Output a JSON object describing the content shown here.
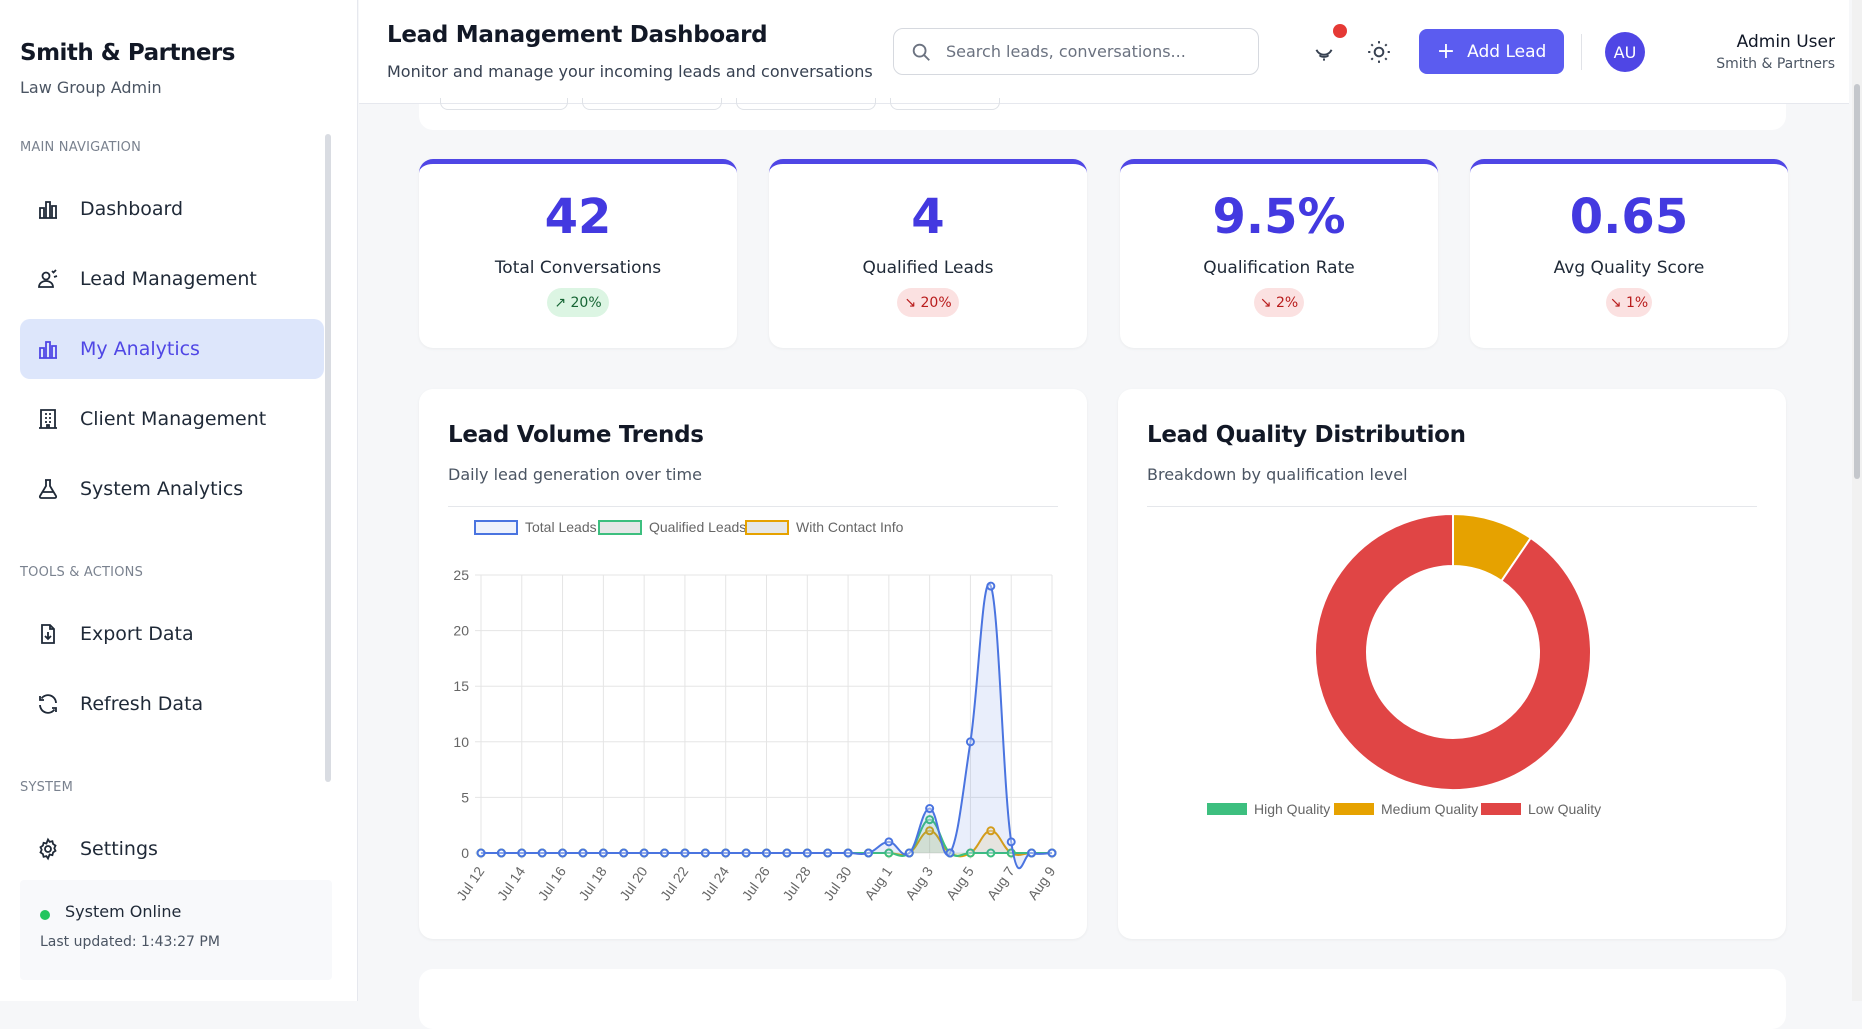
{
  "sidebar": {
    "brand": "Smith & Partners",
    "subtitle": "Law Group Admin",
    "sections": {
      "main": "MAIN NAVIGATION",
      "tools": "TOOLS & ACTIONS",
      "system": "SYSTEM"
    },
    "items": [
      {
        "label": "Dashboard",
        "icon": "bar-chart-icon",
        "active": false
      },
      {
        "label": "Lead Management",
        "icon": "users-icon",
        "active": false
      },
      {
        "label": "My Analytics",
        "icon": "bar-chart-icon",
        "active": true
      },
      {
        "label": "Client Management",
        "icon": "building-icon",
        "active": false
      },
      {
        "label": "System Analytics",
        "icon": "flask-icon",
        "active": false
      },
      {
        "label": "Export Data",
        "icon": "file-download-icon",
        "active": false
      },
      {
        "label": "Refresh Data",
        "icon": "refresh-icon",
        "active": false
      },
      {
        "label": "Settings",
        "icon": "gear-icon",
        "active": false
      }
    ],
    "status": {
      "label": "System Online",
      "updated": "Last updated: 1:43:27 PM",
      "color": "#22c55e"
    }
  },
  "header": {
    "title": "Lead Management Dashboard",
    "subtitle": "Monitor and manage your incoming leads and conversations",
    "search_placeholder": "Search leads, conversations...",
    "add_button": "Add Lead",
    "add_plus": "+",
    "user": {
      "initials": "AU",
      "name": "Admin User",
      "org": "Smith & Partners"
    },
    "accent": "#5b5cf0"
  },
  "stats": [
    {
      "value": "42",
      "label": "Total Conversations",
      "change": "↗ 20%",
      "trend": "up"
    },
    {
      "value": "4",
      "label": "Qualified Leads",
      "change": "↘ 20%",
      "trend": "down"
    },
    {
      "value": "9.5%",
      "label": "Qualification Rate",
      "change": "↘ 2%",
      "trend": "down"
    },
    {
      "value": "0.65",
      "label": "Avg Quality Score",
      "change": "↘ 1%",
      "trend": "down"
    }
  ],
  "volume_card": {
    "title": "Lead Volume Trends",
    "subtitle": "Daily lead generation over time"
  },
  "quality_card": {
    "title": "Lead Quality Distribution",
    "subtitle": "Breakdown by qualification level"
  },
  "chart_data": [
    {
      "type": "line",
      "title": "",
      "x": [
        "Jul 12",
        "Jul 13",
        "Jul 14",
        "Jul 15",
        "Jul 16",
        "Jul 17",
        "Jul 18",
        "Jul 19",
        "Jul 20",
        "Jul 21",
        "Jul 22",
        "Jul 23",
        "Jul 24",
        "Jul 25",
        "Jul 26",
        "Jul 27",
        "Jul 28",
        "Jul 29",
        "Jul 30",
        "Jul 31",
        "Aug 1",
        "Aug 2",
        "Aug 3",
        "Aug 4",
        "Aug 5",
        "Aug 6",
        "Aug 7",
        "Aug 8",
        "Aug 9"
      ],
      "x_tick_labels": [
        "Jul 12",
        "Jul 14",
        "Jul 16",
        "Jul 18",
        "Jul 20",
        "Jul 22",
        "Jul 24",
        "Jul 26",
        "Jul 28",
        "Jul 30",
        "Aug 1",
        "Aug 3",
        "Aug 5",
        "Aug 7",
        "Aug 9"
      ],
      "series": [
        {
          "name": "Total Leads",
          "color": "#4a74e0",
          "values": [
            0,
            0,
            0,
            0,
            0,
            0,
            0,
            0,
            0,
            0,
            0,
            0,
            0,
            0,
            0,
            0,
            0,
            0,
            0,
            0,
            1,
            0,
            4,
            0,
            10,
            24,
            1,
            0,
            0
          ]
        },
        {
          "name": "Qualified Leads",
          "color": "#3dbf7f",
          "values": [
            0,
            0,
            0,
            0,
            0,
            0,
            0,
            0,
            0,
            0,
            0,
            0,
            0,
            0,
            0,
            0,
            0,
            0,
            0,
            0,
            0,
            0,
            3,
            0,
            0,
            0,
            0,
            0,
            0
          ]
        },
        {
          "name": "With Contact Info",
          "color": "#e6a200",
          "values": [
            0,
            0,
            0,
            0,
            0,
            0,
            0,
            0,
            0,
            0,
            0,
            0,
            0,
            0,
            0,
            0,
            0,
            0,
            0,
            0,
            0,
            0,
            2,
            0,
            0,
            2,
            0,
            0,
            0
          ]
        }
      ],
      "ylim": [
        0,
        25
      ],
      "yticks": [
        0,
        5,
        10,
        15,
        20,
        25
      ],
      "grid": true,
      "legend": "top"
    },
    {
      "type": "pie",
      "variant": "doughnut",
      "labels": [
        "High Quality",
        "Medium Quality",
        "Low Quality"
      ],
      "values": [
        0,
        4,
        38
      ],
      "colors": [
        "#3dbf7f",
        "#e6a200",
        "#e04545"
      ],
      "legend": "bottom"
    }
  ]
}
